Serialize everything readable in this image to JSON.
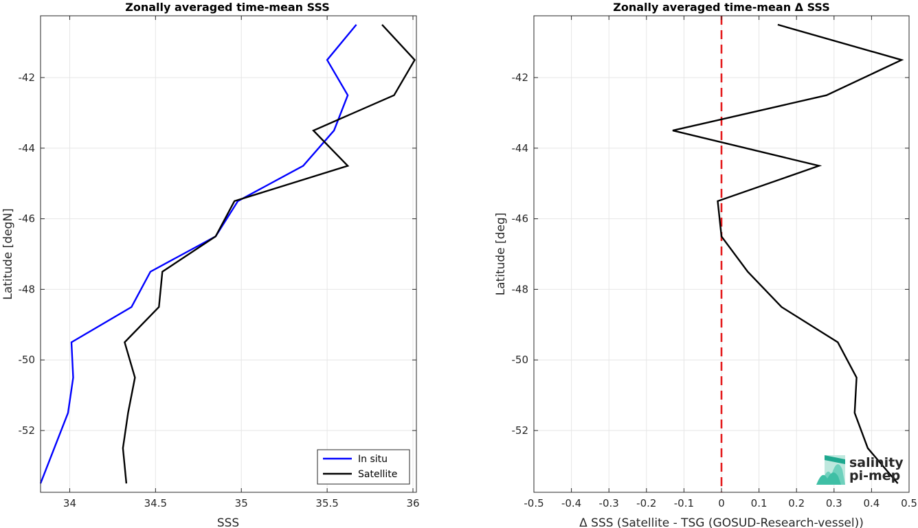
{
  "chart_data": [
    {
      "type": "line",
      "title": "Zonally averaged time-mean SSS",
      "xlabel": "SSS",
      "ylabel": "Latitude [degN]",
      "xlim": [
        33.83,
        36.02
      ],
      "ylim": [
        -53.75,
        -40.25
      ],
      "xticks": [
        34,
        34.5,
        35,
        35.5,
        36
      ],
      "xtick_labels": [
        "34",
        "34.5",
        "35",
        "35.5",
        "36"
      ],
      "yticks": [
        -52,
        -50,
        -48,
        -46,
        -44,
        -42
      ],
      "ytick_labels": [
        "-52",
        "-50",
        "-48",
        "-46",
        "-44",
        "-42"
      ],
      "grid": true,
      "legend": "bottom-right",
      "series": [
        {
          "name": "In situ",
          "color": "#0000ff",
          "points": [
            {
              "x": 35.67,
              "y": -40.5
            },
            {
              "x": 35.5,
              "y": -41.5
            },
            {
              "x": 35.62,
              "y": -42.5
            },
            {
              "x": 35.54,
              "y": -43.5
            },
            {
              "x": 35.36,
              "y": -44.5
            },
            {
              "x": 34.98,
              "y": -45.5
            },
            {
              "x": 34.85,
              "y": -46.5
            },
            {
              "x": 34.47,
              "y": -47.5
            },
            {
              "x": 34.36,
              "y": -48.5
            },
            {
              "x": 34.01,
              "y": -49.5
            },
            {
              "x": 34.02,
              "y": -50.5
            },
            {
              "x": 33.99,
              "y": -51.5
            },
            {
              "x": 33.91,
              "y": -52.5
            },
            {
              "x": 33.83,
              "y": -53.5
            }
          ]
        },
        {
          "name": "Satellite",
          "color": "#000000",
          "points": [
            {
              "x": 35.82,
              "y": -40.5
            },
            {
              "x": 36.01,
              "y": -41.5
            },
            {
              "x": 35.89,
              "y": -42.5
            },
            {
              "x": 35.42,
              "y": -43.5
            },
            {
              "x": 35.62,
              "y": -44.5
            },
            {
              "x": 34.96,
              "y": -45.5
            },
            {
              "x": 34.85,
              "y": -46.5
            },
            {
              "x": 34.54,
              "y": -47.5
            },
            {
              "x": 34.52,
              "y": -48.5
            },
            {
              "x": 34.32,
              "y": -49.5
            },
            {
              "x": 34.38,
              "y": -50.5
            },
            {
              "x": 34.34,
              "y": -51.5
            },
            {
              "x": 34.31,
              "y": -52.5
            },
            {
              "x": 34.33,
              "y": -53.5
            }
          ]
        }
      ]
    },
    {
      "type": "line",
      "title": "Zonally averaged time-mean Δ SSS",
      "xlabel": "Δ SSS (Satellite - TSG (GOSUD-Research-vessel))",
      "ylabel": "Latitude [deg]",
      "xlim": [
        -0.5,
        0.5
      ],
      "ylim": [
        -53.75,
        -40.25
      ],
      "xticks": [
        -0.5,
        -0.4,
        -0.3,
        -0.2,
        -0.1,
        0,
        0.1,
        0.2,
        0.3,
        0.4,
        0.5
      ],
      "xtick_labels": [
        "-0.5",
        "-0.4",
        "-0.3",
        "-0.2",
        "-0.1",
        "0",
        "0.1",
        "0.2",
        "0.3",
        "0.4",
        "0.5"
      ],
      "yticks": [
        -52,
        -50,
        -48,
        -46,
        -44,
        -42
      ],
      "ytick_labels": [
        "-52",
        "-50",
        "-48",
        "-46",
        "-44",
        "-42"
      ],
      "grid": true,
      "reference_line": {
        "x": 0,
        "color": "#e41a1c",
        "style": "dashed"
      },
      "series": [
        {
          "color": "#000000",
          "points": [
            {
              "x": 0.15,
              "y": -40.5
            },
            {
              "x": 0.48,
              "y": -41.5
            },
            {
              "x": 0.28,
              "y": -42.5
            },
            {
              "x": -0.13,
              "y": -43.5
            },
            {
              "x": 0.26,
              "y": -44.5
            },
            {
              "x": -0.01,
              "y": -45.5
            },
            {
              "x": 0.0,
              "y": -46.5
            },
            {
              "x": 0.07,
              "y": -47.5
            },
            {
              "x": 0.16,
              "y": -48.5
            },
            {
              "x": 0.31,
              "y": -49.5
            },
            {
              "x": 0.36,
              "y": -50.5
            },
            {
              "x": 0.355,
              "y": -51.5
            },
            {
              "x": 0.39,
              "y": -52.5
            },
            {
              "x": 0.47,
              "y": -53.5
            }
          ]
        }
      ]
    }
  ],
  "logo": {
    "line1": "salinity",
    "line2": "pi-mep",
    "color": "#1fa88f",
    "icon": "wave-stack-icon"
  }
}
